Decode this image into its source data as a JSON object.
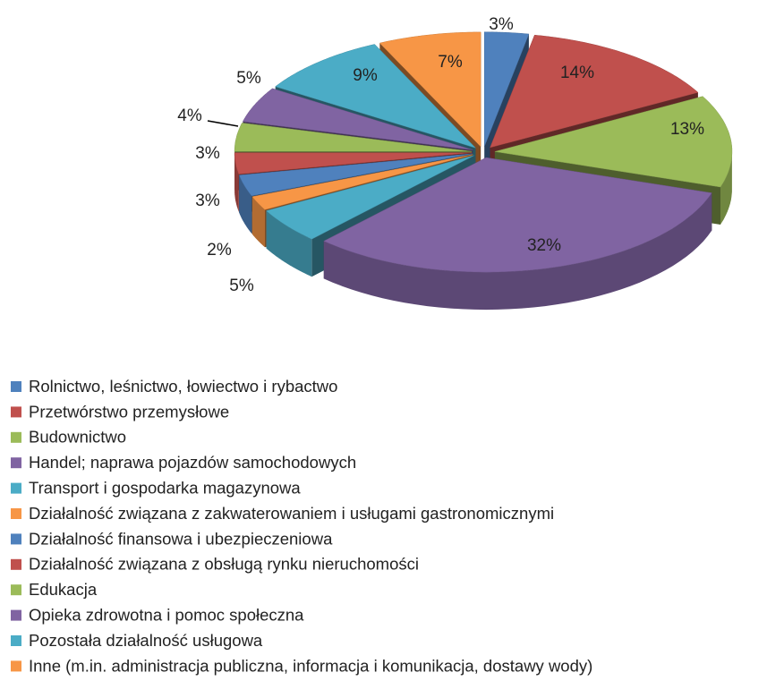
{
  "chart_data": {
    "type": "pie3d",
    "categories": [
      "Rolnictwo, leśnictwo, łowiectwo i rybactwo",
      "Przetwórstwo przemysłowe",
      "Budownictwo",
      "Handel; naprawa pojazdów samochodowych",
      "Transport i gospodarka magazynowa",
      "Działalność związana z zakwaterowaniem i usługami gastronomicznymi",
      "Działalność finansowa i ubezpieczeniowa",
      "Działalność związana z obsługą rynku nieruchomości",
      "Edukacja",
      "Opieka zdrowotna i pomoc społeczna",
      "Pozostała działalność usługowa",
      "Inne (m.in. administracja publiczna, informacja i komunikacja, dostawy wody)"
    ],
    "values": [
      3,
      14,
      13,
      32,
      5,
      2,
      3,
      3,
      4,
      5,
      9,
      7
    ],
    "value_labels": [
      "3%",
      "14%",
      "13%",
      "32%",
      "5%",
      "2%",
      "3%",
      "3%",
      "4%",
      "5%",
      "9%",
      "7%"
    ],
    "colors": [
      "#4f81bd",
      "#c0504d",
      "#9bbb59",
      "#8064a2",
      "#4bacc6",
      "#f79646",
      "#4f81bd",
      "#c0504d",
      "#9bbb59",
      "#8064a2",
      "#4bacc6",
      "#f79646"
    ],
    "legend": "bottom"
  }
}
